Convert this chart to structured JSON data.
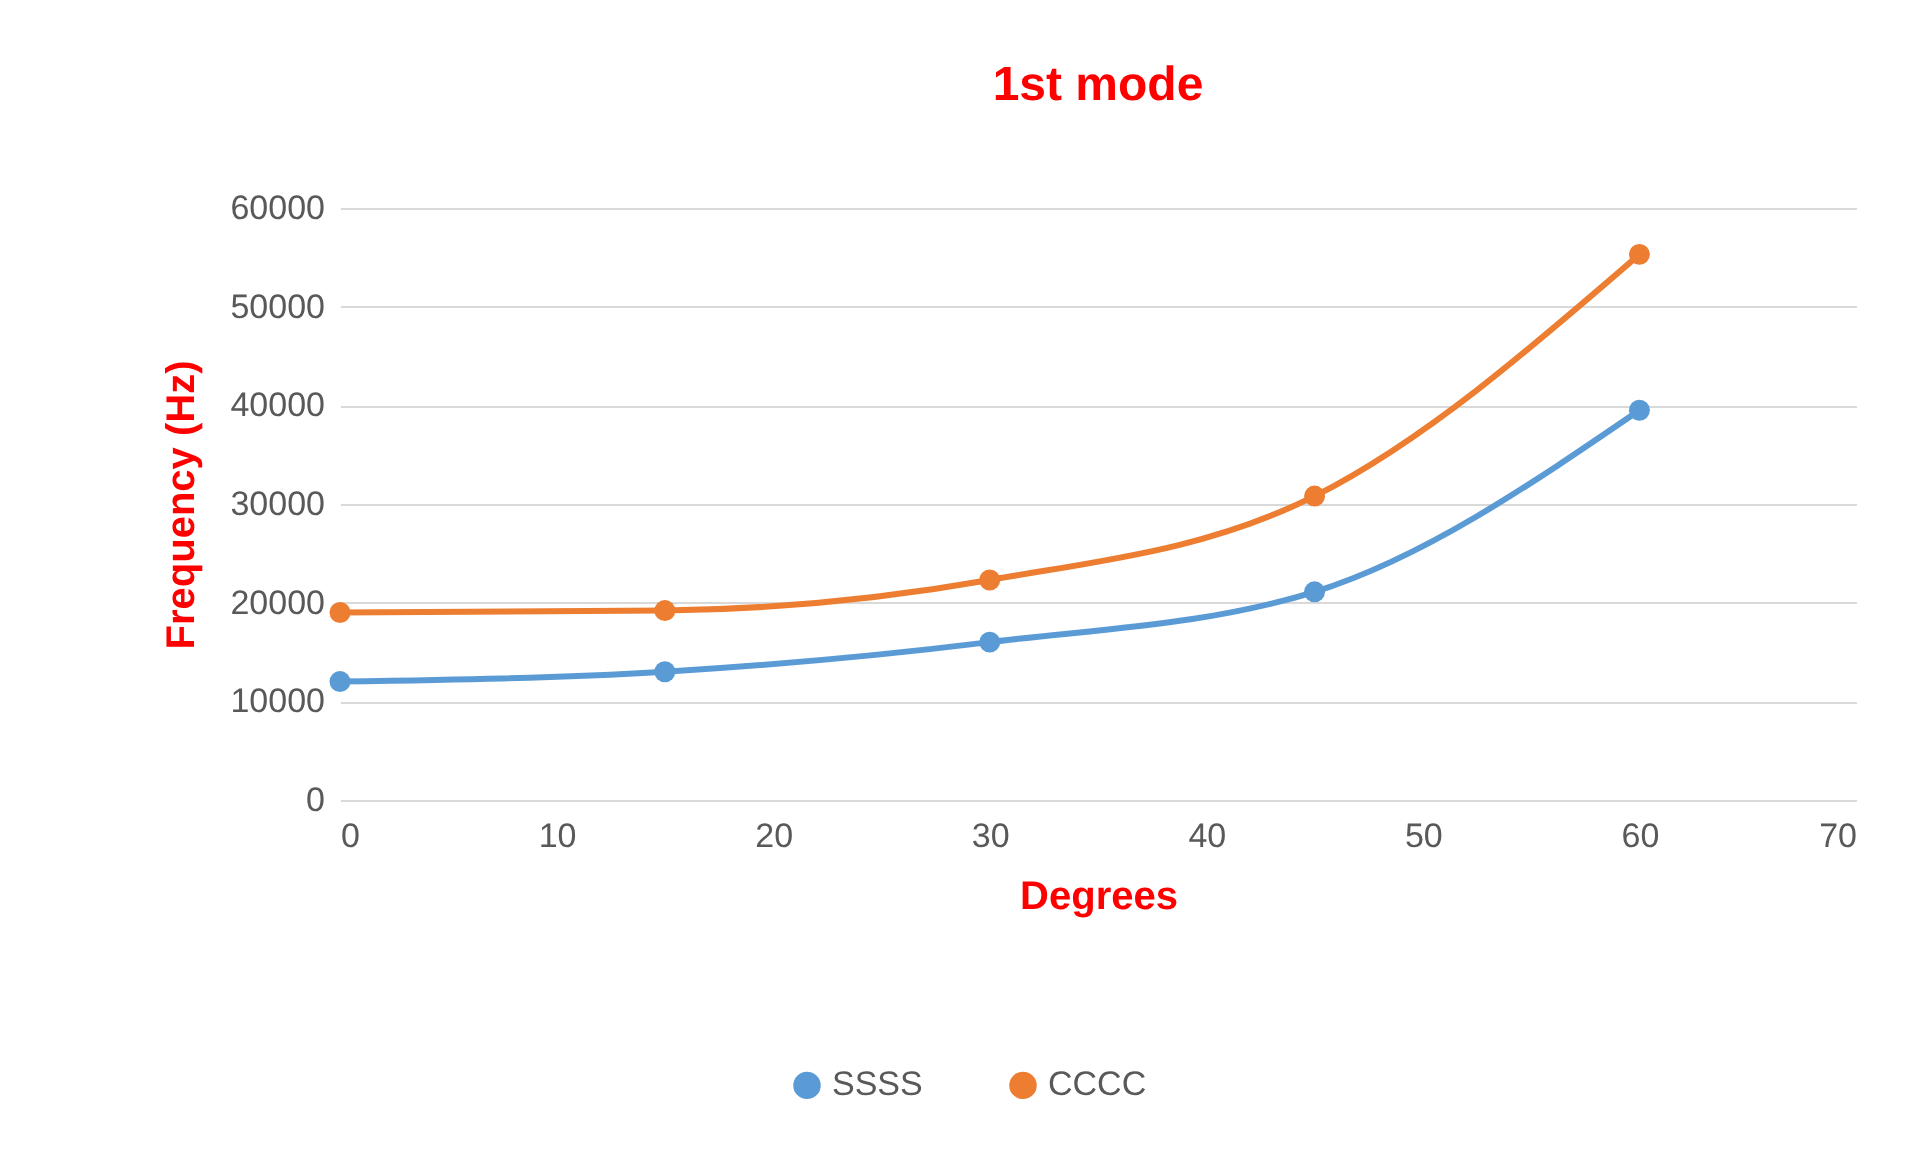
{
  "chart_data": {
    "type": "line",
    "title": "1st mode",
    "xlabel": "Degrees",
    "ylabel": "Frequency (Hz)",
    "x": [
      0,
      15,
      30,
      45,
      60
    ],
    "series": [
      {
        "name": "SSSS",
        "color": "#5b9bd5",
        "values": [
          12000,
          13000,
          16000,
          21100,
          39500
        ]
      },
      {
        "name": "CCCC",
        "color": "#ed7d31",
        "values": [
          19000,
          19200,
          22300,
          30800,
          55300
        ]
      }
    ],
    "xlim": [
      0,
      70
    ],
    "xticks": [
      0,
      10,
      20,
      30,
      40,
      50,
      60,
      70
    ],
    "ylim": [
      0,
      60000
    ],
    "yticks": [
      0,
      10000,
      20000,
      30000,
      40000,
      50000,
      60000
    ],
    "grid": "y",
    "legend": "bottom",
    "marker": "circle",
    "line_style": "solid"
  }
}
